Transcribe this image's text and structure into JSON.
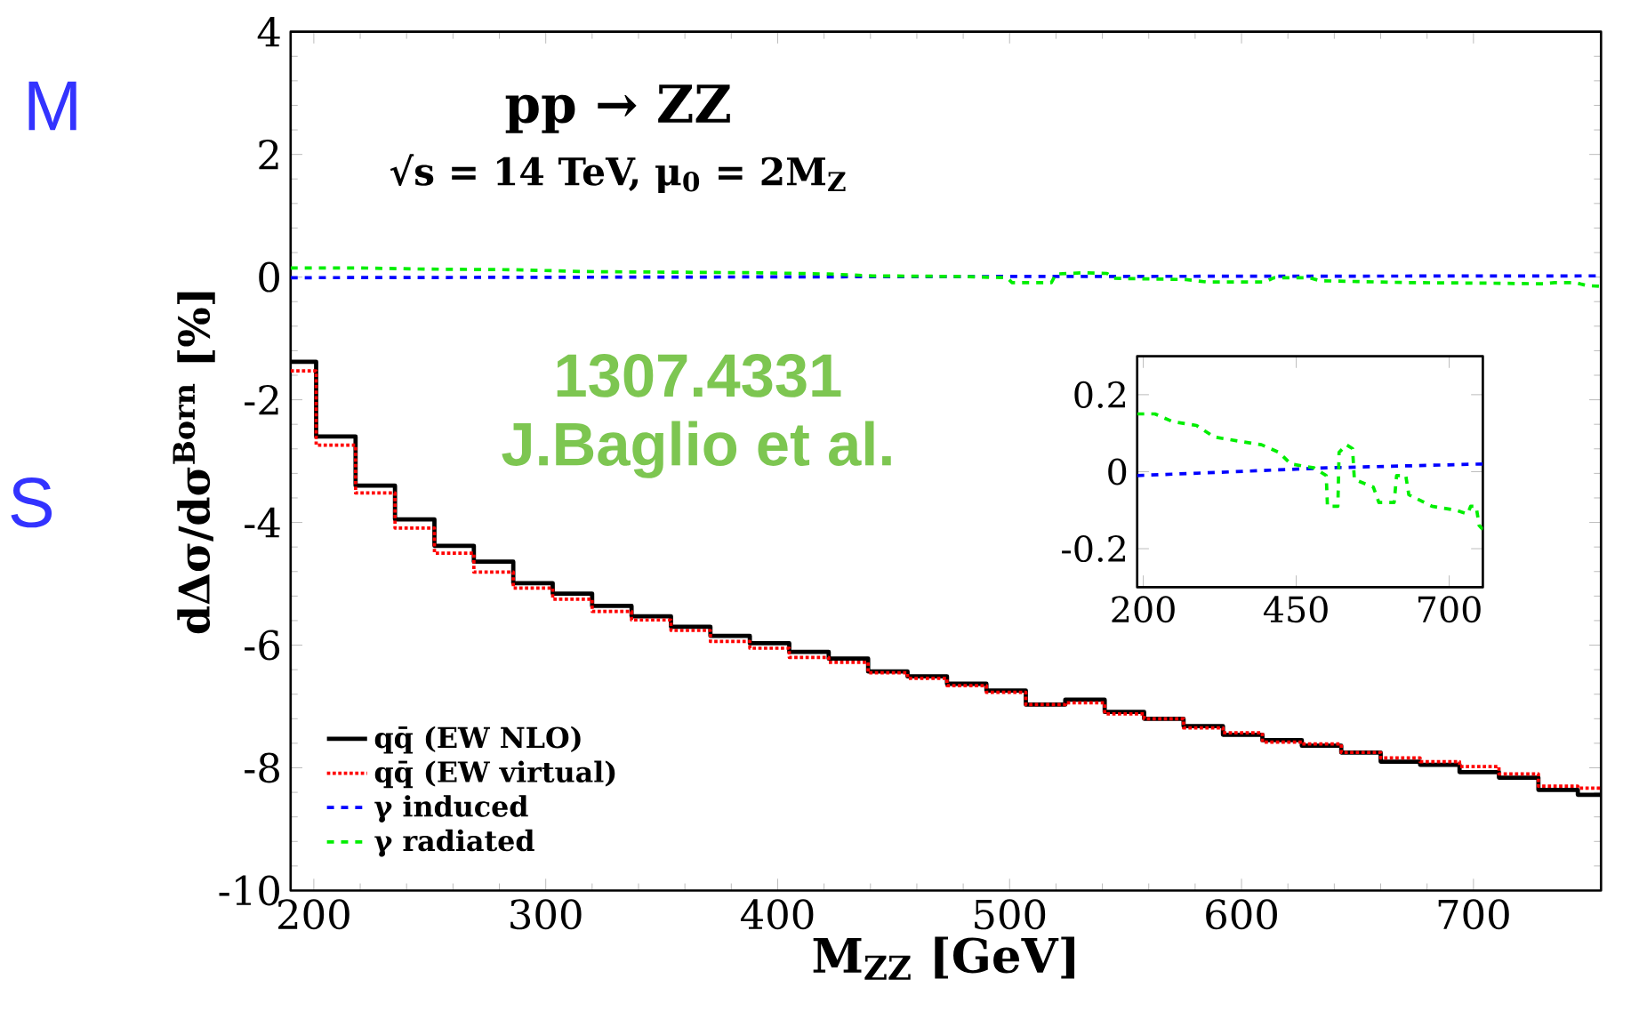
{
  "chart_data": [
    {
      "type": "step",
      "title": "pp → ZZ",
      "subtitle": "√s = 14 TeV, μ$_{0}$ = 2M$_{Z}$",
      "xlabel": "M$_{ZZ}$ [GeV]",
      "ylabel": "dΔσ/dσ$^{Born}$ [%]",
      "annotations": [
        "1307.4331",
        "J.Baglio et al.",
        "M",
        "S"
      ],
      "x": [
        190,
        201,
        218,
        235,
        252,
        269,
        286,
        303,
        320,
        337,
        354,
        371,
        388,
        405,
        422,
        439,
        456,
        473,
        490,
        507,
        524,
        541,
        558,
        575,
        592,
        609,
        626,
        643,
        660,
        677,
        694,
        711,
        728,
        745,
        755
      ],
      "series": [
        {
          "name": "qq̄ (EW NLO)",
          "color": "#000000",
          "line_style": "solid",
          "values": [
            -1.38,
            -2.6,
            -3.4,
            -3.95,
            -4.38,
            -4.64,
            -4.99,
            -5.16,
            -5.36,
            -5.53,
            -5.7,
            -5.85,
            -5.97,
            -6.11,
            -6.22,
            -6.43,
            -6.51,
            -6.63,
            -6.74,
            -6.97,
            -6.89,
            -7.09,
            -7.2,
            -7.32,
            -7.46,
            -7.55,
            -7.64,
            -7.75,
            -7.9,
            -7.95,
            -8.07,
            -8.16,
            -8.36,
            -8.44,
            -8.44
          ]
        },
        {
          "name": "qq̄ (EW virtual)",
          "color": "#ff0000",
          "line_style": "dotted",
          "values": [
            -1.53,
            -2.74,
            -3.52,
            -4.09,
            -4.5,
            -4.81,
            -5.07,
            -5.25,
            -5.45,
            -5.59,
            -5.76,
            -5.94,
            -6.05,
            -6.2,
            -6.28,
            -6.45,
            -6.54,
            -6.66,
            -6.77,
            -6.97,
            -6.94,
            -7.12,
            -7.2,
            -7.35,
            -7.43,
            -7.58,
            -7.61,
            -7.75,
            -7.84,
            -7.9,
            -7.98,
            -8.1,
            -8.3,
            -8.33,
            -8.33
          ]
        },
        {
          "name": "γ induced",
          "type": "line",
          "color": "#0000ff",
          "line_style": "dashed",
          "x": [
            190,
            350,
            500,
            755
          ],
          "values": [
            -0.01,
            0,
            0.01,
            0.02
          ]
        },
        {
          "name": "γ radiated",
          "type": "line",
          "color": "#00ee00",
          "line_style": "dashed",
          "x": [
            190,
            219,
            248,
            287,
            316,
            354,
            393,
            422,
            441,
            479,
            499,
            501,
            518,
            520,
            532,
            542,
            545,
            576,
            585,
            610,
            614,
            629,
            634,
            672,
            711,
            730,
            735,
            744,
            749,
            755
          ],
          "values": [
            0.15,
            0.15,
            0.13,
            0.12,
            0.09,
            0.08,
            0.07,
            0.05,
            0.02,
            0.01,
            -0.01,
            -0.09,
            -0.09,
            0.05,
            0.07,
            0.06,
            -0.02,
            -0.04,
            -0.08,
            -0.08,
            -0.01,
            -0.01,
            -0.06,
            -0.09,
            -0.1,
            -0.11,
            -0.09,
            -0.09,
            -0.14,
            -0.15
          ]
        }
      ],
      "xlim": [
        190,
        755
      ],
      "ylim": [
        -10,
        4
      ],
      "xticks": [
        200,
        300,
        400,
        500,
        600,
        700
      ],
      "yticks": [
        -10,
        -8,
        -6,
        -4,
        -2,
        0,
        2,
        4
      ],
      "legend": "bottom left",
      "grid": false
    },
    {
      "type": "line",
      "series": [
        {
          "color": "#0000ff",
          "line_style": "dashed",
          "x": [
            190,
            350,
            500,
            755
          ],
          "values": [
            -0.01,
            0,
            0.01,
            0.02
          ]
        },
        {
          "color": "#00ee00",
          "line_style": "dashed",
          "x": [
            190,
            219,
            248,
            287,
            316,
            354,
            393,
            422,
            441,
            479,
            499,
            501,
            518,
            520,
            532,
            542,
            545,
            576,
            585,
            610,
            614,
            629,
            634,
            672,
            711,
            730,
            735,
            744,
            749,
            755
          ],
          "values": [
            0.15,
            0.15,
            0.13,
            0.12,
            0.09,
            0.08,
            0.07,
            0.05,
            0.02,
            0.01,
            -0.01,
            -0.09,
            -0.09,
            0.05,
            0.07,
            0.06,
            -0.02,
            -0.04,
            -0.08,
            -0.08,
            -0.01,
            -0.01,
            -0.06,
            -0.09,
            -0.1,
            -0.11,
            -0.09,
            -0.09,
            -0.14,
            -0.15
          ]
        }
      ],
      "xlim": [
        190,
        755
      ],
      "ylim": [
        -0.3,
        0.3
      ],
      "xticks": [
        200,
        450,
        700
      ],
      "yticks": [
        -0.2,
        0,
        0.2
      ],
      "legend": false,
      "grid": false
    }
  ]
}
